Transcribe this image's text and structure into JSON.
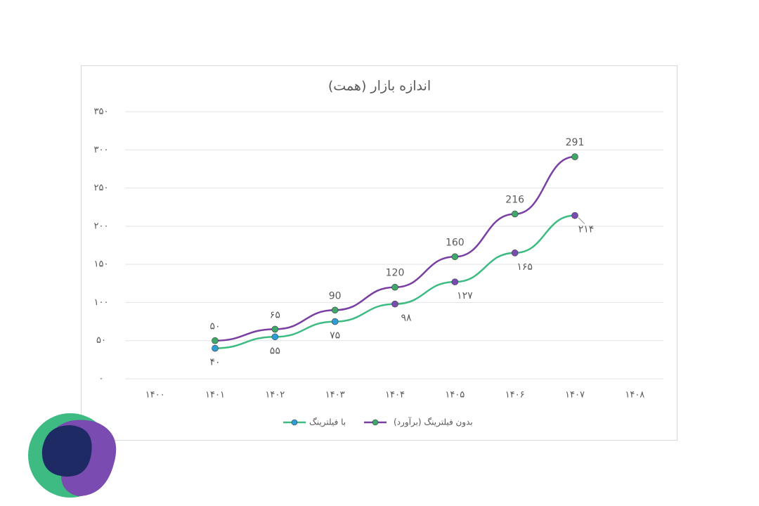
{
  "chart_data": {
    "type": "line",
    "title": "اندازه بازار (همت)",
    "categories": [
      "۱۴۰۰",
      "۱۴۰۱",
      "۱۴۰۲",
      "۱۴۰۳",
      "۱۴۰۴",
      "۱۴۰۵",
      "۱۴۰۶",
      "۱۴۰۷",
      "۱۴۰۸"
    ],
    "series": [
      {
        "name": "بدون فیلترینگ (برآورد)",
        "color": "#7a3fa3",
        "marker_colors": [
          null,
          "#3ea86a",
          "#3ea86a",
          "#3ea86a",
          "#3ea86a",
          "#3ea86a",
          "#3ea86a",
          "#3ea86a",
          null
        ],
        "values": [
          null,
          50,
          65,
          90,
          120,
          160,
          216,
          291,
          null
        ],
        "value_labels": [
          null,
          "۵۰",
          "۶۵",
          "90",
          "120",
          "160",
          "216",
          "291",
          null
        ]
      },
      {
        "name": "با فیلترینگ",
        "color": "#3dbb83",
        "marker_colors": [
          null,
          "#2f9ed8",
          "#2f9ed8",
          "#2f9ed8",
          "#7a4bb0",
          "#7a4bb0",
          "#7a4bb0",
          "#7a4bb0",
          null
        ],
        "values": [
          null,
          40,
          55,
          75,
          98,
          127,
          165,
          214,
          null
        ],
        "value_labels": [
          null,
          "۴۰",
          "۵۵",
          "۷۵",
          "۹۸",
          "۱۲۷",
          "۱۶۵",
          "۲۱۴",
          null
        ]
      }
    ],
    "ylim": [
      0,
      350
    ],
    "yticks": [
      {
        "value": 0,
        "label": "۰"
      },
      {
        "value": 50,
        "label": "۵۰"
      },
      {
        "value": 100,
        "label": "۱۰۰"
      },
      {
        "value": 150,
        "label": "۱۵۰"
      },
      {
        "value": 200,
        "label": "۲۰۰"
      },
      {
        "value": 250,
        "label": "۲۵۰"
      },
      {
        "value": 300,
        "label": "۳۰۰"
      },
      {
        "value": 350,
        "label": "۳۵۰"
      }
    ],
    "grid": true,
    "legend": "bottom"
  }
}
